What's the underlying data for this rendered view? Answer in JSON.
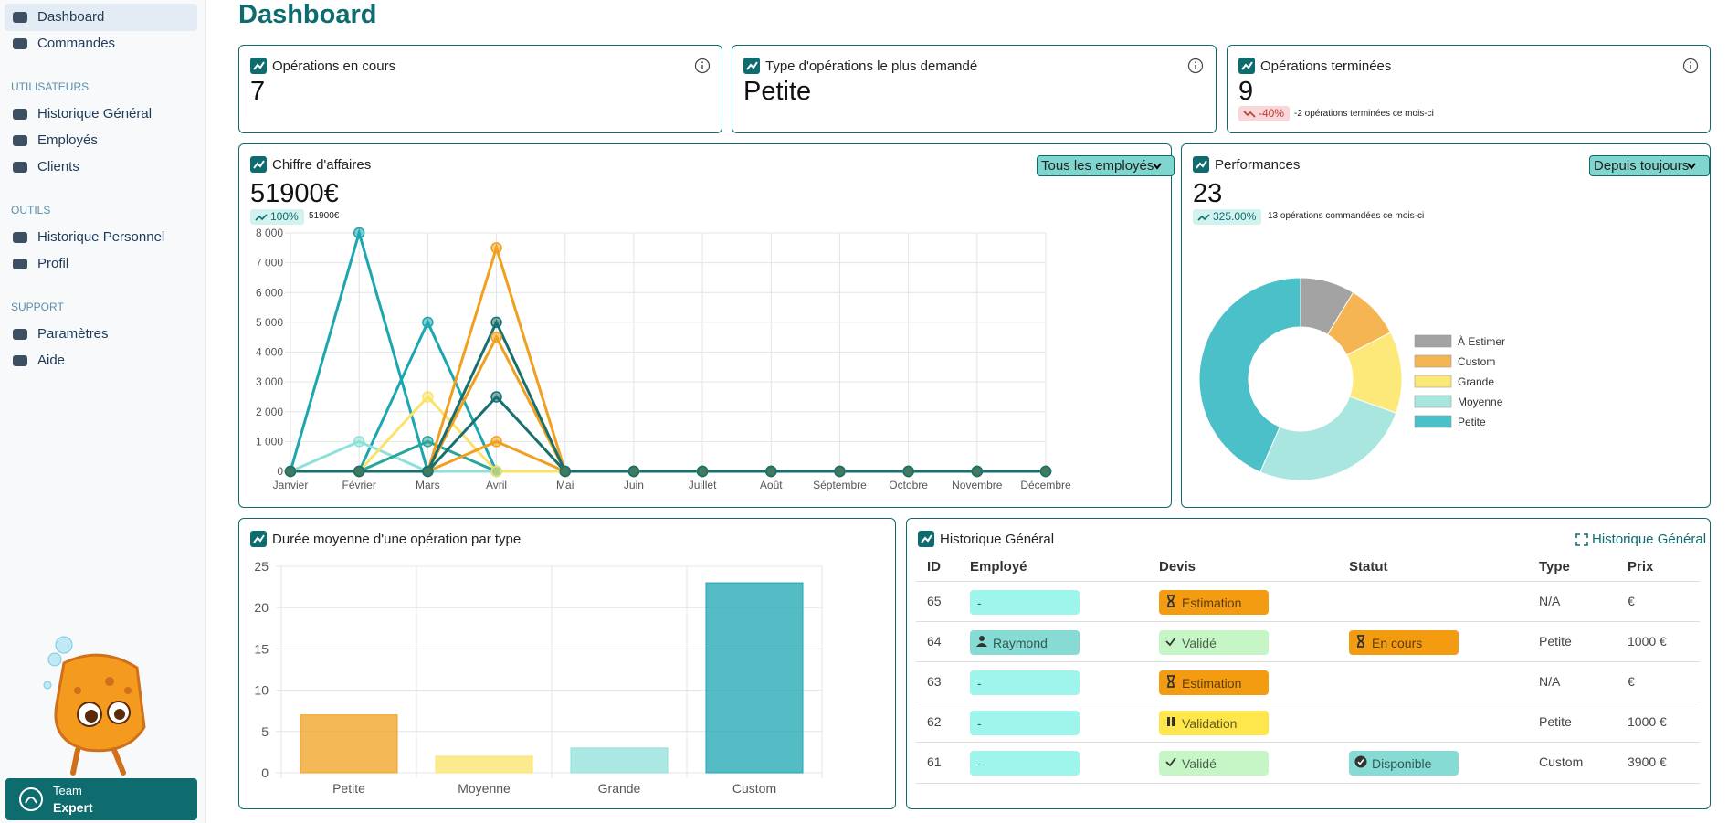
{
  "sidebar": {
    "sections": [
      {
        "items": [
          "Dashboard",
          "Commandes"
        ]
      },
      {
        "title": "UTILISATEURS",
        "items": [
          "Historique Général",
          "Employés",
          "Clients"
        ]
      },
      {
        "title": "OUTILS",
        "items": [
          "Historique Personnel",
          "Profil"
        ]
      },
      {
        "title": "SUPPORT",
        "items": [
          "Paramètres",
          "Aide"
        ]
      }
    ],
    "team": {
      "line1": "Team",
      "line2": "Expert"
    }
  },
  "header": {
    "title": "Dashboard"
  },
  "stat_cards": [
    {
      "title": "Opérations en cours",
      "value": 7
    },
    {
      "title": "Type d'opérations le plus demandé",
      "value": "Petite"
    },
    {
      "title": "Opérations terminées",
      "value": 9,
      "delta": "-40%",
      "note": "-2 opérations terminées ce mois-ci"
    }
  ],
  "revenue": {
    "title": "Chiffre d'affaires",
    "filter": "Tous les employés",
    "value": "51900€",
    "delta": "100%",
    "note": "51900€",
    "chart_data": {
      "type": "line",
      "categories": [
        "Janvier",
        "Février",
        "Mars",
        "Avril",
        "Mai",
        "Juin",
        "Juillet",
        "Août",
        "Séptembre",
        "Octobre",
        "Novembre",
        "Décembre"
      ],
      "series": [
        {
          "color": "#1ba6b0",
          "values": [
            0,
            8000,
            0,
            0,
            0,
            0,
            0,
            0,
            0,
            0,
            0,
            0
          ]
        },
        {
          "color": "#1ba6b0",
          "values": [
            0,
            0,
            5000,
            0,
            0,
            0,
            0,
            0,
            0,
            0,
            0,
            0
          ]
        },
        {
          "color": "#8fe0da",
          "values": [
            0,
            1000,
            0,
            0,
            0,
            0,
            0,
            0,
            0,
            0,
            0,
            0
          ]
        },
        {
          "color": "#2aa59c",
          "values": [
            0,
            0,
            1000,
            0,
            0,
            0,
            0,
            0,
            0,
            0,
            0,
            0
          ]
        },
        {
          "color": "#fbe36a",
          "values": [
            0,
            0,
            2500,
            0,
            0,
            0,
            0,
            0,
            0,
            0,
            0,
            0
          ]
        },
        {
          "color": "#f0a01e",
          "values": [
            0,
            0,
            0,
            7500,
            0,
            0,
            0,
            0,
            0,
            0,
            0,
            0
          ]
        },
        {
          "color": "#f0a01e",
          "values": [
            0,
            0,
            0,
            4500,
            0,
            0,
            0,
            0,
            0,
            0,
            0,
            0
          ]
        },
        {
          "color": "#f0a01e",
          "values": [
            0,
            0,
            0,
            1000,
            0,
            0,
            0,
            0,
            0,
            0,
            0,
            0
          ]
        },
        {
          "color": "#17706f",
          "values": [
            0,
            0,
            0,
            5000,
            0,
            0,
            0,
            0,
            0,
            0,
            0,
            0
          ]
        },
        {
          "color": "#17706f",
          "values": [
            0,
            0,
            0,
            2500,
            0,
            0,
            0,
            0,
            0,
            0,
            0,
            0
          ]
        }
      ],
      "ylim": [
        0,
        8000
      ],
      "yticks": [
        0,
        {
          "value": 1000,
          "label": "1 000"
        },
        {
          "value": 2000,
          "label": "2 000"
        },
        {
          "value": 3000,
          "label": "3 000"
        },
        {
          "value": 4000,
          "label": "4 000"
        },
        {
          "value": 5000,
          "label": "5 000"
        },
        {
          "value": 6000,
          "label": "6 000"
        },
        {
          "value": 7000,
          "label": "7 000"
        },
        {
          "value": 8000,
          "label": "8 000"
        }
      ],
      "grid": true
    }
  },
  "performance": {
    "title": "Performances",
    "filter": "Depuis toujours",
    "value": 23,
    "delta": "325.00%",
    "note": "13 opérations commandées ce mois-ci",
    "chart_data": {
      "type": "doughnut",
      "categories": [
        "À Estimer",
        "Custom",
        "Grande",
        "Moyenne",
        "Petite"
      ],
      "values": [
        2,
        2,
        3,
        6,
        10
      ],
      "colors": [
        "#a3a3a3",
        "#f5b553",
        "#fde87a",
        "#a8e6df",
        "#4bc0c8"
      ]
    }
  },
  "duration": {
    "title": "Durée moyenne d'une opération par type",
    "chart_data": {
      "type": "bar",
      "categories": [
        "Petite",
        "Moyenne",
        "Grande",
        "Custom"
      ],
      "values": [
        7,
        2,
        3,
        23
      ],
      "colors": [
        "#f0a01e",
        "#fbe36a",
        "#8fe0da",
        "#1ba6b0"
      ],
      "ylim": [
        0,
        25
      ],
      "yticks": [
        0,
        5,
        10,
        15,
        20,
        25
      ],
      "grid": true
    }
  },
  "history": {
    "title": "Historique Général",
    "link": "Historique Général",
    "columns": [
      "ID",
      "Employé",
      "Devis",
      "Statut",
      "Type",
      "Prix"
    ],
    "rows": [
      {
        "id": 65,
        "employee": {
          "label": "-",
          "color": "#9ef5ec"
        },
        "quote": {
          "label": "Estimation",
          "color": "#f39c12",
          "icon": "hourglass"
        },
        "type": "N/A",
        "price": "€"
      },
      {
        "id": 64,
        "employee": {
          "label": "Raymond",
          "color": "#86dcd4",
          "icon": "person"
        },
        "quote": {
          "label": "Validé",
          "color": "#c6f6c6",
          "icon": "check"
        },
        "status": {
          "label": "En cours",
          "color": "#f39c12",
          "icon": "hourglass"
        },
        "type": "Petite",
        "price": "1000 €"
      },
      {
        "id": 63,
        "employee": {
          "label": "-",
          "color": "#9ef5ec"
        },
        "quote": {
          "label": "Estimation",
          "color": "#f39c12",
          "icon": "hourglass"
        },
        "type": "N/A",
        "price": "€"
      },
      {
        "id": 62,
        "employee": {
          "label": "-",
          "color": "#9ef5ec"
        },
        "quote": {
          "label": "Validation",
          "color": "#fde74c",
          "icon": "pause"
        },
        "type": "Petite",
        "price": "1000 €"
      },
      {
        "id": 61,
        "employee": {
          "label": "-",
          "color": "#9ef5ec"
        },
        "quote": {
          "label": "Validé",
          "color": "#c6f6c6",
          "icon": "check"
        },
        "status": {
          "label": "Disponible",
          "color": "#86dcd4",
          "icon": "check-circle"
        },
        "type": "Custom",
        "price": "3900 €"
      }
    ]
  }
}
